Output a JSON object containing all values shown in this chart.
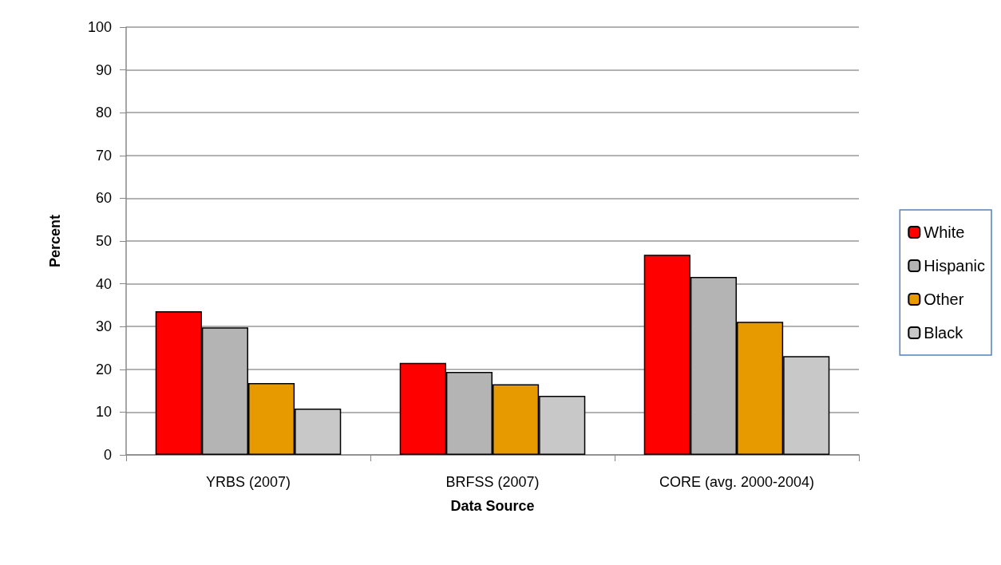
{
  "chart_data": {
    "type": "bar",
    "xlabel": "Data Source",
    "ylabel": "Percent",
    "categories": [
      "YRBS (2007)",
      "BRFSS (2007)",
      "CORE (avg. 2000-2004)"
    ],
    "series": [
      {
        "name": "White",
        "color": "#ff0000",
        "values": [
          33.6,
          21.5,
          46.8
        ]
      },
      {
        "name": "Hispanic",
        "color": "#b4b4b4",
        "values": [
          29.8,
          19.4,
          41.6
        ]
      },
      {
        "name": "Other",
        "color": "#e69a00",
        "values": [
          16.8,
          16.5,
          31.1
        ]
      },
      {
        "name": "Black",
        "color": "#c8c8c8",
        "values": [
          10.8,
          13.8,
          23.1
        ]
      }
    ],
    "ylim": [
      0,
      100
    ],
    "yticks": [
      0,
      10,
      20,
      30,
      40,
      50,
      60,
      70,
      80,
      90,
      100
    ],
    "grid": "y",
    "legend": "right"
  }
}
